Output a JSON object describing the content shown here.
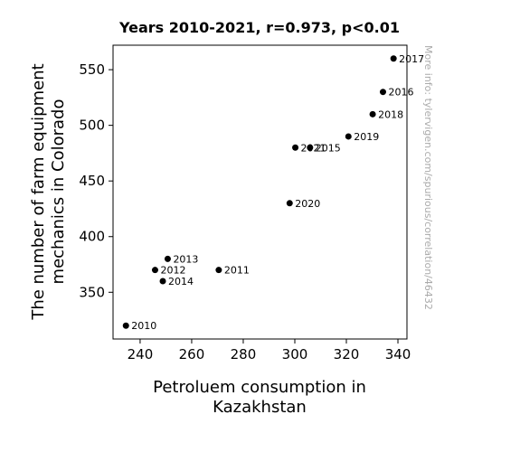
{
  "chart_data": {
    "type": "scatter",
    "title": "Years 2010-2021, r=0.973, p<0.01",
    "xlabel_lines": [
      "Petroluem consumption in",
      "Kazakhstan"
    ],
    "ylabel_lines": [
      "The number of farm equipment",
      "mechanics in Colorado"
    ],
    "xlim": [
      229.5,
      343.5
    ],
    "ylim": [
      308,
      572
    ],
    "xticks": [
      240,
      260,
      280,
      300,
      320,
      340
    ],
    "yticks": [
      350,
      400,
      450,
      500,
      550
    ],
    "grid": false,
    "marker_color": "#000000",
    "points": [
      {
        "label": "2010",
        "x": 234.5,
        "y": 320
      },
      {
        "label": "2011",
        "x": 270.5,
        "y": 370
      },
      {
        "label": "2012",
        "x": 245.8,
        "y": 370
      },
      {
        "label": "2013",
        "x": 250.7,
        "y": 380
      },
      {
        "label": "2014",
        "x": 248.8,
        "y": 360
      },
      {
        "label": "2015",
        "x": 305.9,
        "y": 480
      },
      {
        "label": "2016",
        "x": 334.2,
        "y": 530
      },
      {
        "label": "2017",
        "x": 338.3,
        "y": 560
      },
      {
        "label": "2018",
        "x": 330.2,
        "y": 510
      },
      {
        "label": "2019",
        "x": 320.8,
        "y": 490
      },
      {
        "label": "2020",
        "x": 298.0,
        "y": 430
      },
      {
        "label": "2021",
        "x": 300.2,
        "y": 480
      }
    ]
  },
  "watermark": "More info: tylervigen.com/spurious/correlation/46432"
}
